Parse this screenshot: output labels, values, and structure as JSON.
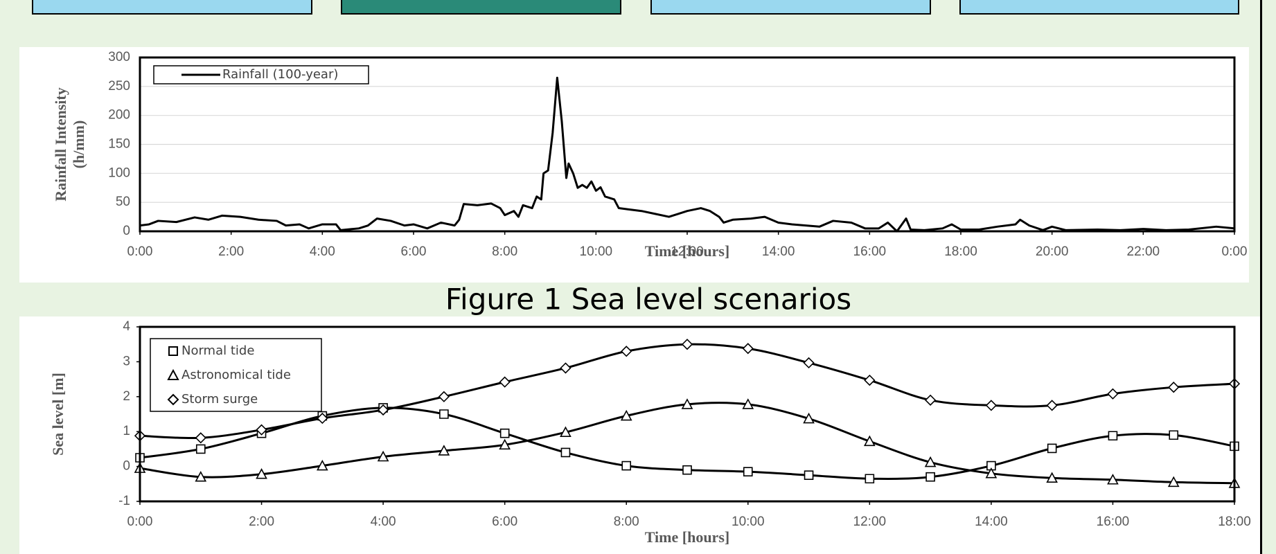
{
  "caption": "Figure 1 Sea level scenarios",
  "chart_data": [
    {
      "type": "line",
      "xlabel": "Time [hours]",
      "ylabel": [
        "Rainfall Intensity",
        "(h/mm)"
      ],
      "x": [
        0,
        0.2,
        0.4,
        0.8,
        1.2,
        1.5,
        1.8,
        2.2,
        2.6,
        3.0,
        3.2,
        3.5,
        3.7,
        4.0,
        4.3,
        4.4,
        4.8,
        5.0,
        5.2,
        5.5,
        5.8,
        6.0,
        6.3,
        6.6,
        6.9,
        7.0,
        7.1,
        7.4,
        7.7,
        7.9,
        8.0,
        8.2,
        8.3,
        8.4,
        8.6,
        8.7,
        8.8,
        8.85,
        8.95,
        9.05,
        9.15,
        9.25,
        9.35,
        9.4,
        9.5,
        9.6,
        9.7,
        9.8,
        9.9,
        10.0,
        10.1,
        10.2,
        10.4,
        10.5,
        10.7,
        11.0,
        11.3,
        11.6,
        11.8,
        12.0,
        12.3,
        12.5,
        12.7,
        12.8,
        13.0,
        13.4,
        13.7,
        14.0,
        14.3,
        14.6,
        14.9,
        15.2,
        15.6,
        15.9,
        16.2,
        16.4,
        16.6,
        16.8,
        16.9,
        17.2,
        17.6,
        17.8,
        18.0,
        18.4,
        18.8,
        19.2,
        19.3,
        19.5,
        19.8,
        20.0,
        20.3,
        21.0,
        21.5,
        22.0,
        22.5,
        23.0,
        23.6,
        24
      ],
      "series": [
        {
          "name": "Rainfall (100-year)",
          "color": "#000000",
          "values": [
            10,
            12,
            18,
            16,
            24,
            20,
            27,
            25,
            20,
            18,
            10,
            12,
            5,
            12,
            12,
            2,
            5,
            10,
            22,
            18,
            10,
            12,
            5,
            15,
            10,
            20,
            47,
            45,
            48,
            40,
            28,
            35,
            25,
            45,
            40,
            60,
            55,
            100,
            105,
            170,
            265,
            190,
            92,
            117,
            100,
            75,
            80,
            75,
            86,
            70,
            76,
            60,
            55,
            40,
            38,
            35,
            30,
            25,
            30,
            35,
            40,
            35,
            25,
            15,
            20,
            22,
            25,
            15,
            12,
            10,
            8,
            18,
            15,
            5,
            5,
            15,
            0,
            22,
            3,
            2,
            5,
            12,
            3,
            3,
            8,
            12,
            20,
            10,
            2,
            8,
            2,
            3,
            2,
            4,
            2,
            3,
            8,
            5
          ]
        }
      ],
      "xlim": [
        0,
        24
      ],
      "xticks": [
        {
          "value": 0,
          "label": "0:00"
        },
        {
          "value": 2,
          "label": "2:00"
        },
        {
          "value": 4,
          "label": "4:00"
        },
        {
          "value": 6,
          "label": "6:00"
        },
        {
          "value": 8,
          "label": "8:00"
        },
        {
          "value": 10,
          "label": "10:00"
        },
        {
          "value": 12,
          "label": "12:00"
        },
        {
          "value": 14,
          "label": "14:00"
        },
        {
          "value": 16,
          "label": "16:00"
        },
        {
          "value": 18,
          "label": "18:00"
        },
        {
          "value": 20,
          "label": "20:00"
        },
        {
          "value": 22,
          "label": "22:00"
        },
        {
          "value": 24,
          "label": "0:00"
        }
      ],
      "ylim": [
        0,
        300
      ],
      "yticks": [
        0,
        50,
        100,
        150,
        200,
        250,
        300
      ],
      "grid": true,
      "smooth": false,
      "legend": "upper left"
    },
    {
      "type": "line",
      "xlabel": "Time [hours]",
      "ylabel": [
        "Sea level [m]"
      ],
      "x": [
        0,
        1,
        2,
        3,
        4,
        5,
        6,
        7,
        8,
        9,
        10,
        11,
        12,
        13,
        14,
        15,
        16,
        17,
        18
      ],
      "series": [
        {
          "name": "Normal tide",
          "color": "#000000",
          "marker": "square",
          "values": [
            0.25,
            0.5,
            0.95,
            1.45,
            1.68,
            1.5,
            0.95,
            0.4,
            0.02,
            -0.1,
            -0.15,
            -0.25,
            -0.35,
            -0.3,
            0.02,
            0.52,
            0.88,
            0.9,
            0.58
          ]
        },
        {
          "name": "Astronomical tide",
          "color": "#000000",
          "marker": "triangle",
          "values": [
            -0.05,
            -0.3,
            -0.22,
            0.02,
            0.28,
            0.45,
            0.62,
            0.98,
            1.45,
            1.78,
            1.78,
            1.37,
            0.72,
            0.12,
            -0.2,
            -0.33,
            -0.38,
            -0.45,
            -0.48
          ]
        },
        {
          "name": "Storm surge",
          "color": "#000000",
          "marker": "diamond",
          "values": [
            0.88,
            0.82,
            1.05,
            1.38,
            1.62,
            2.0,
            2.42,
            2.82,
            3.3,
            3.5,
            3.38,
            2.97,
            2.47,
            1.9,
            1.75,
            1.75,
            2.08,
            2.27,
            2.37
          ]
        }
      ],
      "xlim": [
        0,
        18
      ],
      "xticks": [
        {
          "value": 0,
          "label": "0:00"
        },
        {
          "value": 2,
          "label": "2:00"
        },
        {
          "value": 4,
          "label": "4:00"
        },
        {
          "value": 6,
          "label": "6:00"
        },
        {
          "value": 8,
          "label": "8:00"
        },
        {
          "value": 10,
          "label": "10:00"
        },
        {
          "value": 12,
          "label": "12:00"
        },
        {
          "value": 14,
          "label": "14:00"
        },
        {
          "value": 16,
          "label": "16:00"
        },
        {
          "value": 18,
          "label": "18:00"
        }
      ],
      "ylim": [
        -1,
        4
      ],
      "yticks": [
        -1,
        0,
        1,
        2,
        3,
        4
      ],
      "grid": false,
      "smooth": true,
      "legend": "upper left"
    }
  ]
}
